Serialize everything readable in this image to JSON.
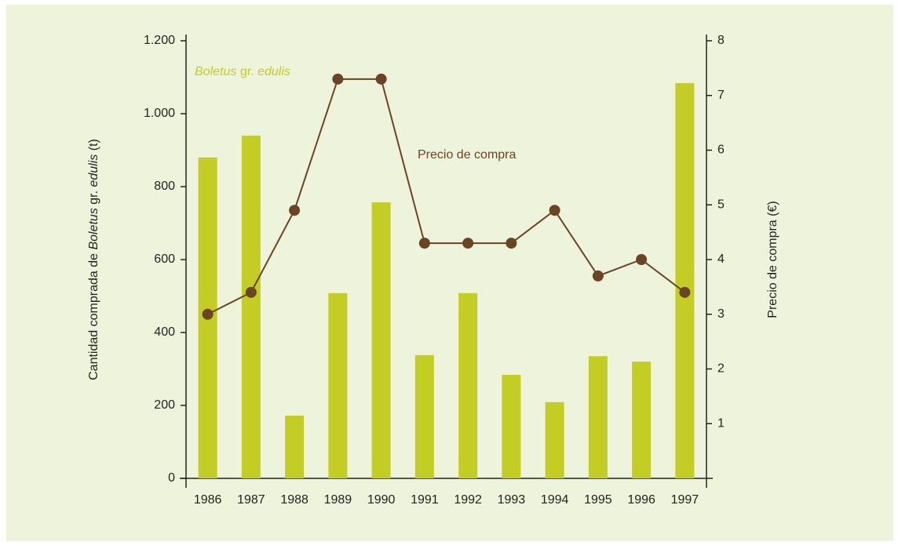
{
  "chart_data": {
    "type": "bar-line",
    "categories": [
      "1986",
      "1987",
      "1988",
      "1989",
      "1990",
      "1991",
      "1992",
      "1993",
      "1994",
      "1995",
      "1996",
      "1997"
    ],
    "series": [
      {
        "name_parts": [
          {
            "text": "Boletus",
            "italic": true
          },
          {
            "text": " gr. ",
            "italic": false
          },
          {
            "text": "edulis",
            "italic": true
          }
        ],
        "type": "bar",
        "color": "#c3cd24",
        "values": [
          880,
          940,
          172,
          508,
          757,
          338,
          508,
          284,
          209,
          335,
          320,
          1084
        ]
      },
      {
        "name": "Precio de compra",
        "type": "line",
        "axis": "y2",
        "color": "#6b4424",
        "values": [
          3.0,
          3.4,
          4.9,
          7.3,
          7.3,
          4.3,
          4.3,
          4.3,
          4.9,
          3.7,
          4.0,
          3.4
        ]
      }
    ],
    "ylabel_parts": [
      {
        "text": "Cantidad comprada de ",
        "italic": false
      },
      {
        "text": "Boletus",
        "italic": true
      },
      {
        "text": " gr. ",
        "italic": false
      },
      {
        "text": "edulis",
        "italic": true
      },
      {
        "text": " (t)",
        "italic": false
      }
    ],
    "y2label": "Precio de compra (€)",
    "ylim": [
      0,
      1200
    ],
    "yticks": [
      0,
      200,
      400,
      600,
      800,
      {
        "value": 1000,
        "label": "1.000"
      },
      {
        "value": 1200,
        "label": "1.200"
      }
    ],
    "y2lim": [
      0,
      8
    ],
    "y2ticks": [
      1,
      2,
      3,
      4,
      5,
      6,
      7,
      8
    ]
  }
}
